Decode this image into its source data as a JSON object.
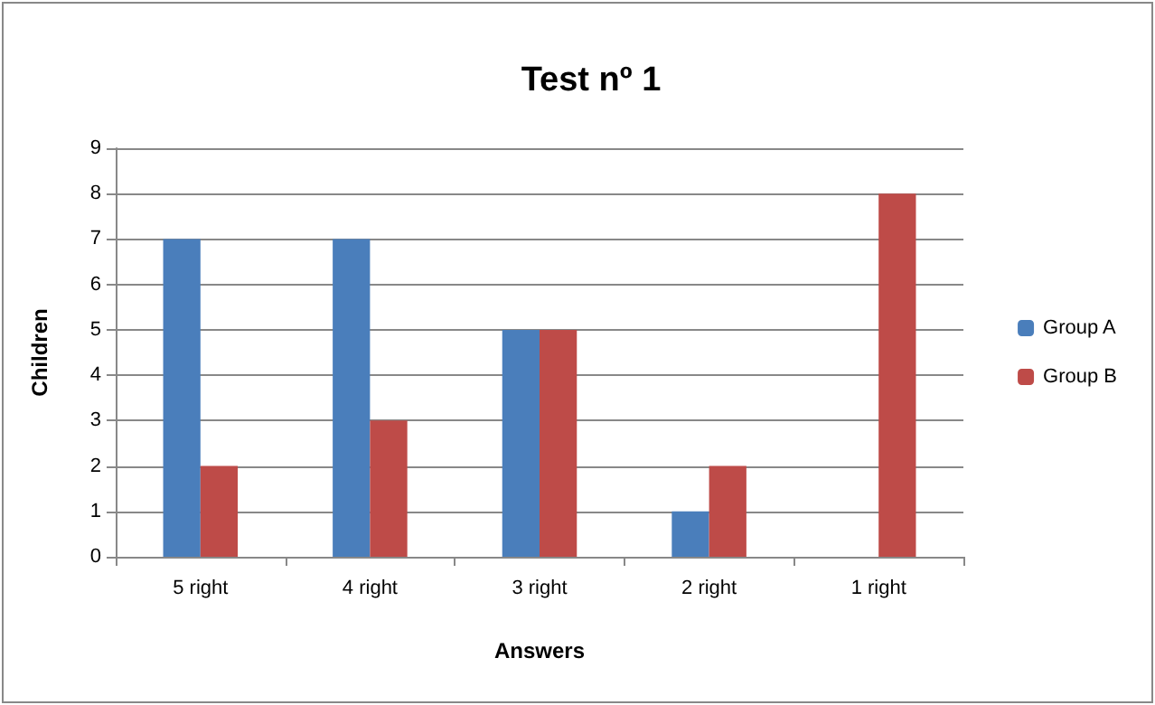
{
  "chart_data": {
    "type": "bar",
    "title": "Test nº 1",
    "xlabel": "Answers",
    "ylabel": "Children",
    "categories": [
      "5 right",
      "4 right",
      "3 right",
      "2 right",
      "1 right"
    ],
    "series": [
      {
        "name": "Group A",
        "color": "#4a7ebb",
        "values": [
          7,
          7,
          5,
          1,
          0
        ]
      },
      {
        "name": "Group B",
        "color": "#be4b48",
        "values": [
          2,
          3,
          5,
          2,
          8
        ]
      }
    ],
    "ylim": [
      0,
      9
    ],
    "yticks": [
      0,
      1,
      2,
      3,
      4,
      5,
      6,
      7,
      8,
      9
    ],
    "grid": "y",
    "legend": "right"
  }
}
